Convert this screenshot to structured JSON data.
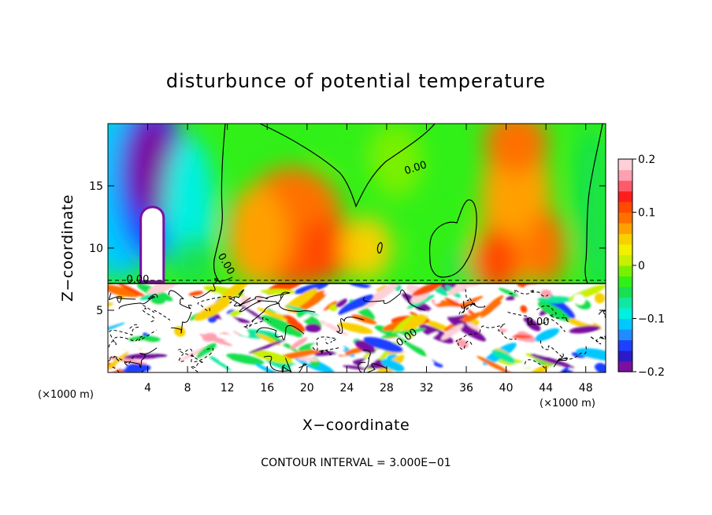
{
  "chart_data": {
    "type": "heatmap",
    "title": "disturbunce of potential temperature",
    "xlabel": "X−coordinate",
    "ylabel": "Z−coordinate",
    "x_unit_label": "(×1000 m)",
    "z_unit_label": "(×1000 m)",
    "xlim": [
      0,
      50
    ],
    "ylim": [
      0,
      20
    ],
    "x_ticks": [
      4,
      8,
      12,
      16,
      20,
      24,
      28,
      32,
      36,
      40,
      44,
      48
    ],
    "y_ticks": [
      5,
      10,
      15
    ],
    "colorbar": {
      "range": [
        -0.2,
        0.2
      ],
      "tick_values": [
        0.2,
        0.1,
        0,
        -0.1,
        -0.2
      ],
      "tick_labels": [
        "0.2",
        "0.1",
        "0",
        "−0.1",
        "−0.2"
      ],
      "colors": [
        "#7a10a0",
        "#2a1bc8",
        "#1e40ff",
        "#1f8cff",
        "#00c8ff",
        "#00f0e0",
        "#10e8a0",
        "#18e050",
        "#30f018",
        "#7af000",
        "#c8f000",
        "#f0f000",
        "#f8d000",
        "#ffa000",
        "#ff7000",
        "#ff4a00",
        "#ff1e1e",
        "#ff5a6a",
        "#ffa0b0",
        "#ffd0d8"
      ]
    },
    "contour_label": "0.00",
    "contour_interval_text": "CONTOUR INTERVAL = 3.000E−01",
    "field_description": {
      "upper_layer_z_range": [
        7.3,
        20
      ],
      "lower_layer_z_range": [
        0,
        7.3
      ],
      "features": [
        {
          "kind": "cold_anomaly",
          "x_center": 4.5,
          "z_center": 15,
          "min_value": -0.2
        },
        {
          "kind": "warm_anomaly",
          "x_center": 19,
          "z_center": 10,
          "max_value": 0.12
        },
        {
          "kind": "warm_anomaly",
          "x_center": 42,
          "z_center": 14,
          "max_value": 0.08
        },
        {
          "kind": "cold_anomaly",
          "x_center": 34,
          "z_center": 9,
          "min_value": -0.04
        }
      ]
    }
  }
}
